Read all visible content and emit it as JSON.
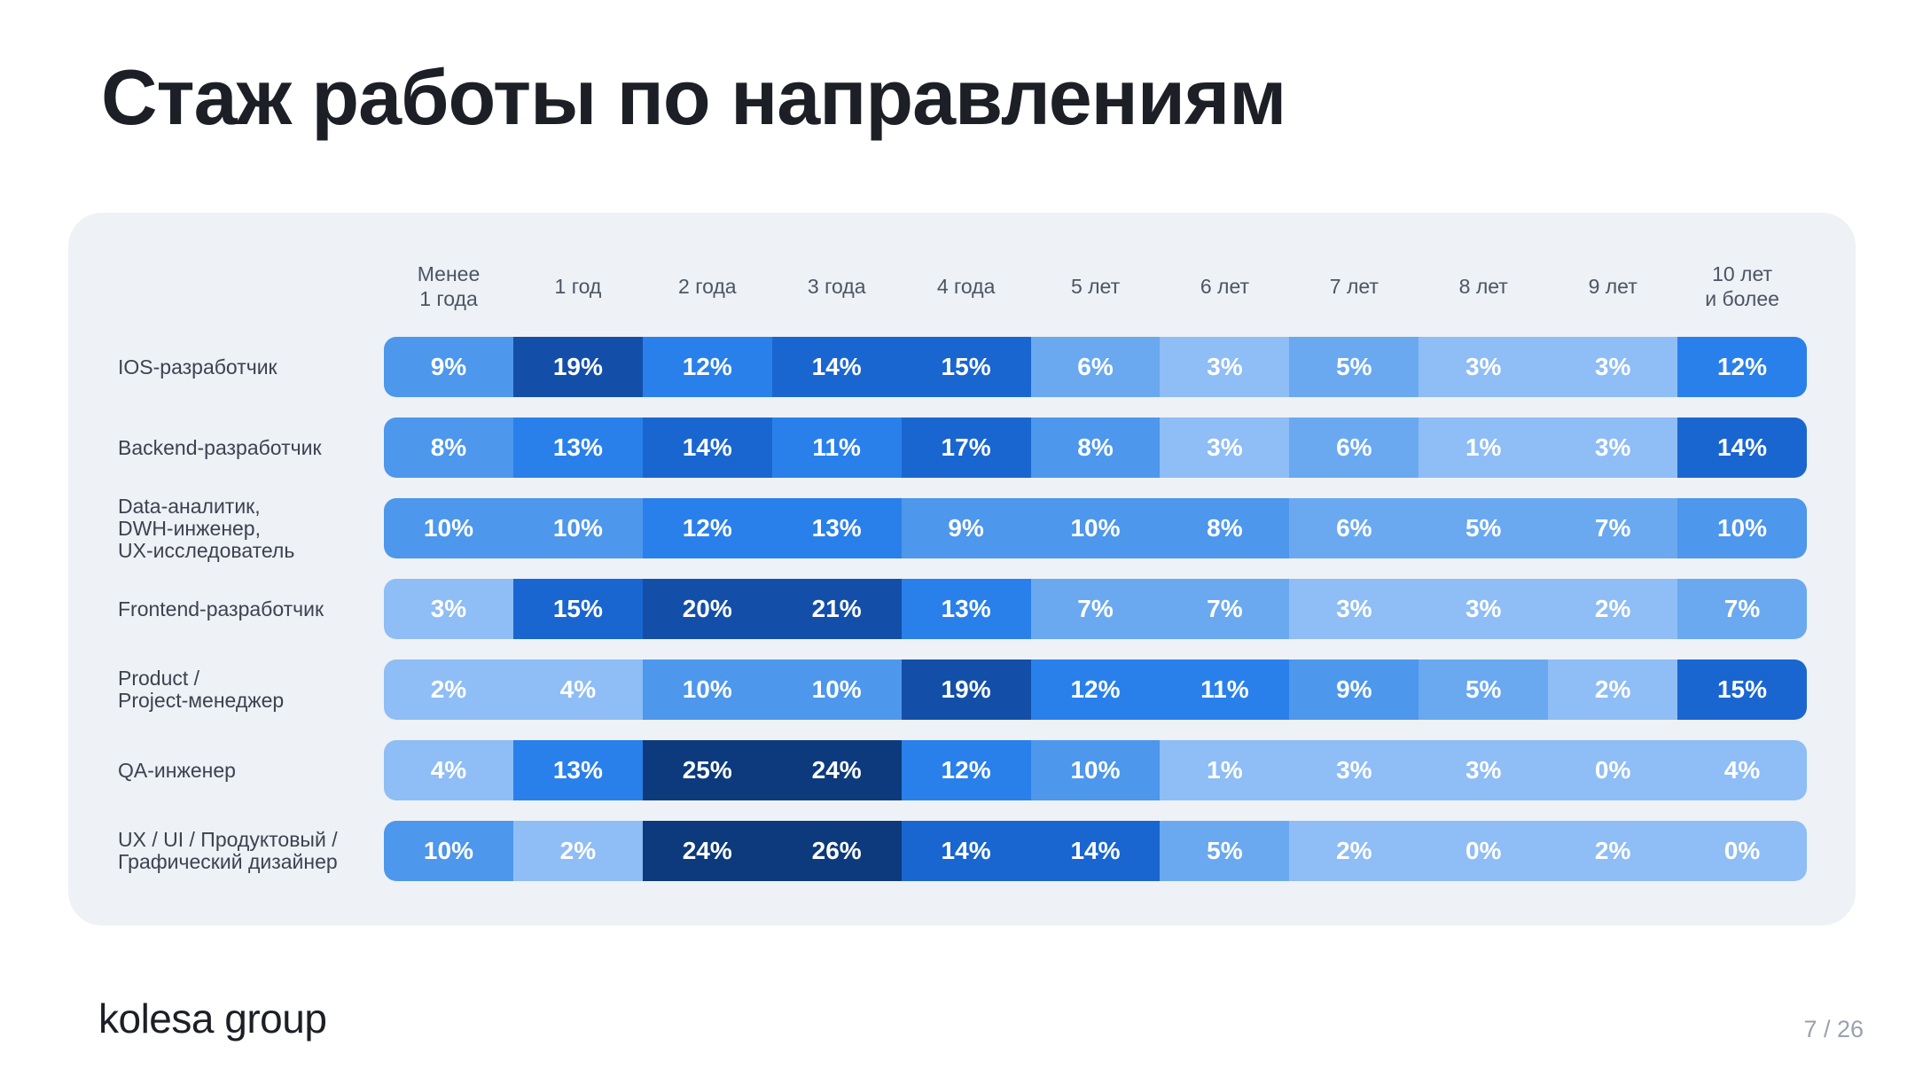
{
  "title": "Стаж работы по направлениям",
  "footer": {
    "logo": "kolesa group",
    "page": "7 / 26"
  },
  "colors": {
    "lightest": "#8fbdf5",
    "light": "#6aa9f0",
    "medium": "#4d97ec",
    "bright": "#2a80ea",
    "deep": "#1a66d0",
    "dark": "#134fa8",
    "darkest": "#0c3a7c"
  },
  "chart_data": {
    "type": "heatmap",
    "title": "Стаж работы по направлениям",
    "columns": [
      "Менее\n1 года",
      "1 год",
      "2 года",
      "3 года",
      "4 года",
      "5 лет",
      "6 лет",
      "7 лет",
      "8 лет",
      "9 лет",
      "10 лет\nи более"
    ],
    "rows": [
      {
        "label": "IOS-разработчик",
        "values": [
          "9%",
          "19%",
          "12%",
          "14%",
          "15%",
          "6%",
          "3%",
          "5%",
          "3%",
          "3%",
          "12%"
        ]
      },
      {
        "label": "Backend-разработчик",
        "values": [
          "8%",
          "13%",
          "14%",
          "11%",
          "17%",
          "8%",
          "3%",
          "6%",
          "1%",
          "3%",
          "14%"
        ]
      },
      {
        "label": "Data-аналитик,\nDWH-инженер,\nUX-исследователь",
        "values": [
          "10%",
          "10%",
          "12%",
          "13%",
          "9%",
          "10%",
          "8%",
          "6%",
          "5%",
          "7%",
          "10%"
        ]
      },
      {
        "label": "Frontend-разработчик",
        "values": [
          "3%",
          "15%",
          "20%",
          "21%",
          "13%",
          "7%",
          "7%",
          "3%",
          "3%",
          "2%",
          "7%"
        ]
      },
      {
        "label": "Product /\nProject-менеджер",
        "values": [
          "2%",
          "4%",
          "10%",
          "10%",
          "19%",
          "12%",
          "11%",
          "9%",
          "5%",
          "2%",
          "15%"
        ]
      },
      {
        "label": "QA-инженер",
        "values": [
          "4%",
          "13%",
          "25%",
          "24%",
          "12%",
          "10%",
          "1%",
          "3%",
          "3%",
          "0%",
          "4%"
        ]
      },
      {
        "label": "UX / UI / Продуктовый /\nГрафический дизайнер",
        "values": [
          "10%",
          "2%",
          "24%",
          "26%",
          "14%",
          "14%",
          "5%",
          "2%",
          "0%",
          "2%",
          "0%"
        ]
      }
    ]
  }
}
